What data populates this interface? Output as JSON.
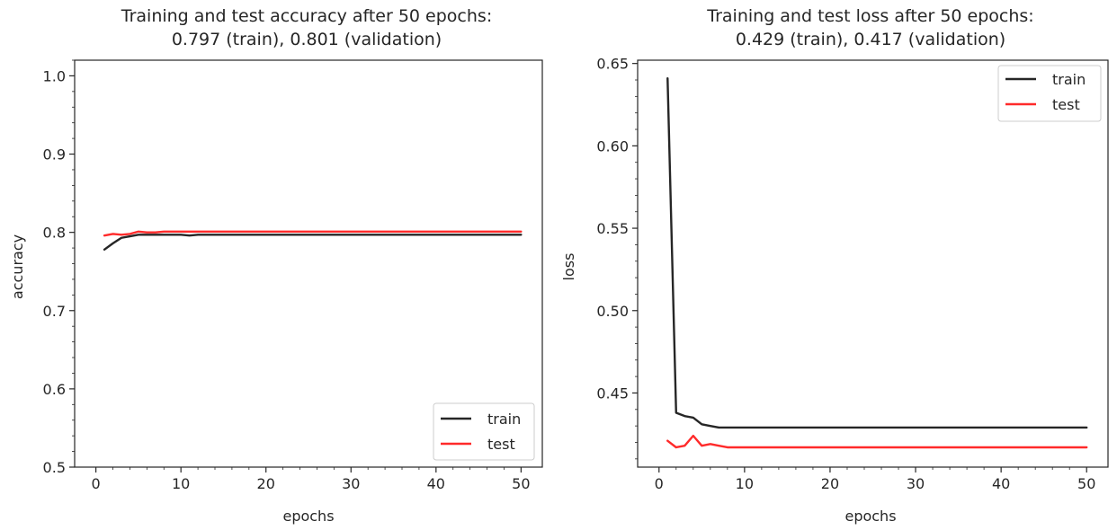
{
  "chart_data": [
    {
      "type": "line",
      "title": "Training and test accuracy after 50 epochs:",
      "subtitle": "0.797 (train), 0.801 (validation)",
      "xlabel": "epochs",
      "ylabel": "accuracy",
      "xlim": [
        -2.5,
        52.5
      ],
      "ylim": [
        0.5,
        1.02
      ],
      "xticks": [
        0,
        10,
        20,
        30,
        40,
        50
      ],
      "yticks": [
        0.5,
        0.6,
        0.7,
        0.8,
        0.9,
        1.0
      ],
      "ytick_labels": [
        "0.5",
        "0.6",
        "0.7",
        "0.8",
        "0.9",
        "1.0"
      ],
      "grid": false,
      "legend": "lower-right",
      "x": [
        1,
        2,
        3,
        4,
        5,
        6,
        7,
        8,
        9,
        10,
        11,
        12,
        13,
        14,
        15,
        16,
        17,
        18,
        19,
        20,
        21,
        22,
        23,
        24,
        25,
        26,
        27,
        28,
        29,
        30,
        31,
        32,
        33,
        34,
        35,
        36,
        37,
        38,
        39,
        40,
        41,
        42,
        43,
        44,
        45,
        46,
        47,
        48,
        49,
        50
      ],
      "series": [
        {
          "name": "train",
          "color": "#262626",
          "values": [
            0.778,
            0.786,
            0.793,
            0.795,
            0.797,
            0.797,
            0.797,
            0.797,
            0.797,
            0.797,
            0.796,
            0.797,
            0.797,
            0.797,
            0.797,
            0.797,
            0.797,
            0.797,
            0.797,
            0.797,
            0.797,
            0.797,
            0.797,
            0.797,
            0.797,
            0.797,
            0.797,
            0.797,
            0.797,
            0.797,
            0.797,
            0.797,
            0.797,
            0.797,
            0.797,
            0.797,
            0.797,
            0.797,
            0.797,
            0.797,
            0.797,
            0.797,
            0.797,
            0.797,
            0.797,
            0.797,
            0.797,
            0.797,
            0.797,
            0.797
          ]
        },
        {
          "name": "test",
          "color": "#ff2a2a",
          "values": [
            0.796,
            0.798,
            0.797,
            0.798,
            0.801,
            0.8,
            0.8,
            0.801,
            0.801,
            0.801,
            0.801,
            0.801,
            0.801,
            0.801,
            0.801,
            0.801,
            0.801,
            0.801,
            0.801,
            0.801,
            0.801,
            0.801,
            0.801,
            0.801,
            0.801,
            0.801,
            0.801,
            0.801,
            0.801,
            0.801,
            0.801,
            0.801,
            0.801,
            0.801,
            0.801,
            0.801,
            0.801,
            0.801,
            0.801,
            0.801,
            0.801,
            0.801,
            0.801,
            0.801,
            0.801,
            0.801,
            0.801,
            0.801,
            0.801,
            0.801
          ]
        }
      ]
    },
    {
      "type": "line",
      "title": "Training and test loss after 50 epochs:",
      "subtitle": "0.429 (train), 0.417 (validation)",
      "xlabel": "epochs",
      "ylabel": "loss",
      "xlim": [
        -2.5,
        52.5
      ],
      "ylim": [
        0.405,
        0.652
      ],
      "xticks": [
        0,
        10,
        20,
        30,
        40,
        50
      ],
      "yticks": [
        0.45,
        0.5,
        0.55,
        0.6,
        0.65
      ],
      "ytick_labels": [
        "0.45",
        "0.50",
        "0.55",
        "0.60",
        "0.65"
      ],
      "grid": false,
      "legend": "upper-right",
      "x": [
        1,
        2,
        3,
        4,
        5,
        6,
        7,
        8,
        9,
        10,
        11,
        12,
        13,
        14,
        15,
        16,
        17,
        18,
        19,
        20,
        21,
        22,
        23,
        24,
        25,
        26,
        27,
        28,
        29,
        30,
        31,
        32,
        33,
        34,
        35,
        36,
        37,
        38,
        39,
        40,
        41,
        42,
        43,
        44,
        45,
        46,
        47,
        48,
        49,
        50
      ],
      "series": [
        {
          "name": "train",
          "color": "#262626",
          "values": [
            0.641,
            0.438,
            0.436,
            0.435,
            0.431,
            0.43,
            0.429,
            0.429,
            0.429,
            0.429,
            0.429,
            0.429,
            0.429,
            0.429,
            0.429,
            0.429,
            0.429,
            0.429,
            0.429,
            0.429,
            0.429,
            0.429,
            0.429,
            0.429,
            0.429,
            0.429,
            0.429,
            0.429,
            0.429,
            0.429,
            0.429,
            0.429,
            0.429,
            0.429,
            0.429,
            0.429,
            0.429,
            0.429,
            0.429,
            0.429,
            0.429,
            0.429,
            0.429,
            0.429,
            0.429,
            0.429,
            0.429,
            0.429,
            0.429,
            0.429
          ]
        },
        {
          "name": "test",
          "color": "#ff2a2a",
          "values": [
            0.421,
            0.417,
            0.418,
            0.424,
            0.418,
            0.419,
            0.418,
            0.417,
            0.417,
            0.417,
            0.417,
            0.417,
            0.417,
            0.417,
            0.417,
            0.417,
            0.417,
            0.417,
            0.417,
            0.417,
            0.417,
            0.417,
            0.417,
            0.417,
            0.417,
            0.417,
            0.417,
            0.417,
            0.417,
            0.417,
            0.417,
            0.417,
            0.417,
            0.417,
            0.417,
            0.417,
            0.417,
            0.417,
            0.417,
            0.417,
            0.417,
            0.417,
            0.417,
            0.417,
            0.417,
            0.417,
            0.417,
            0.417,
            0.417,
            0.417
          ]
        }
      ]
    }
  ]
}
